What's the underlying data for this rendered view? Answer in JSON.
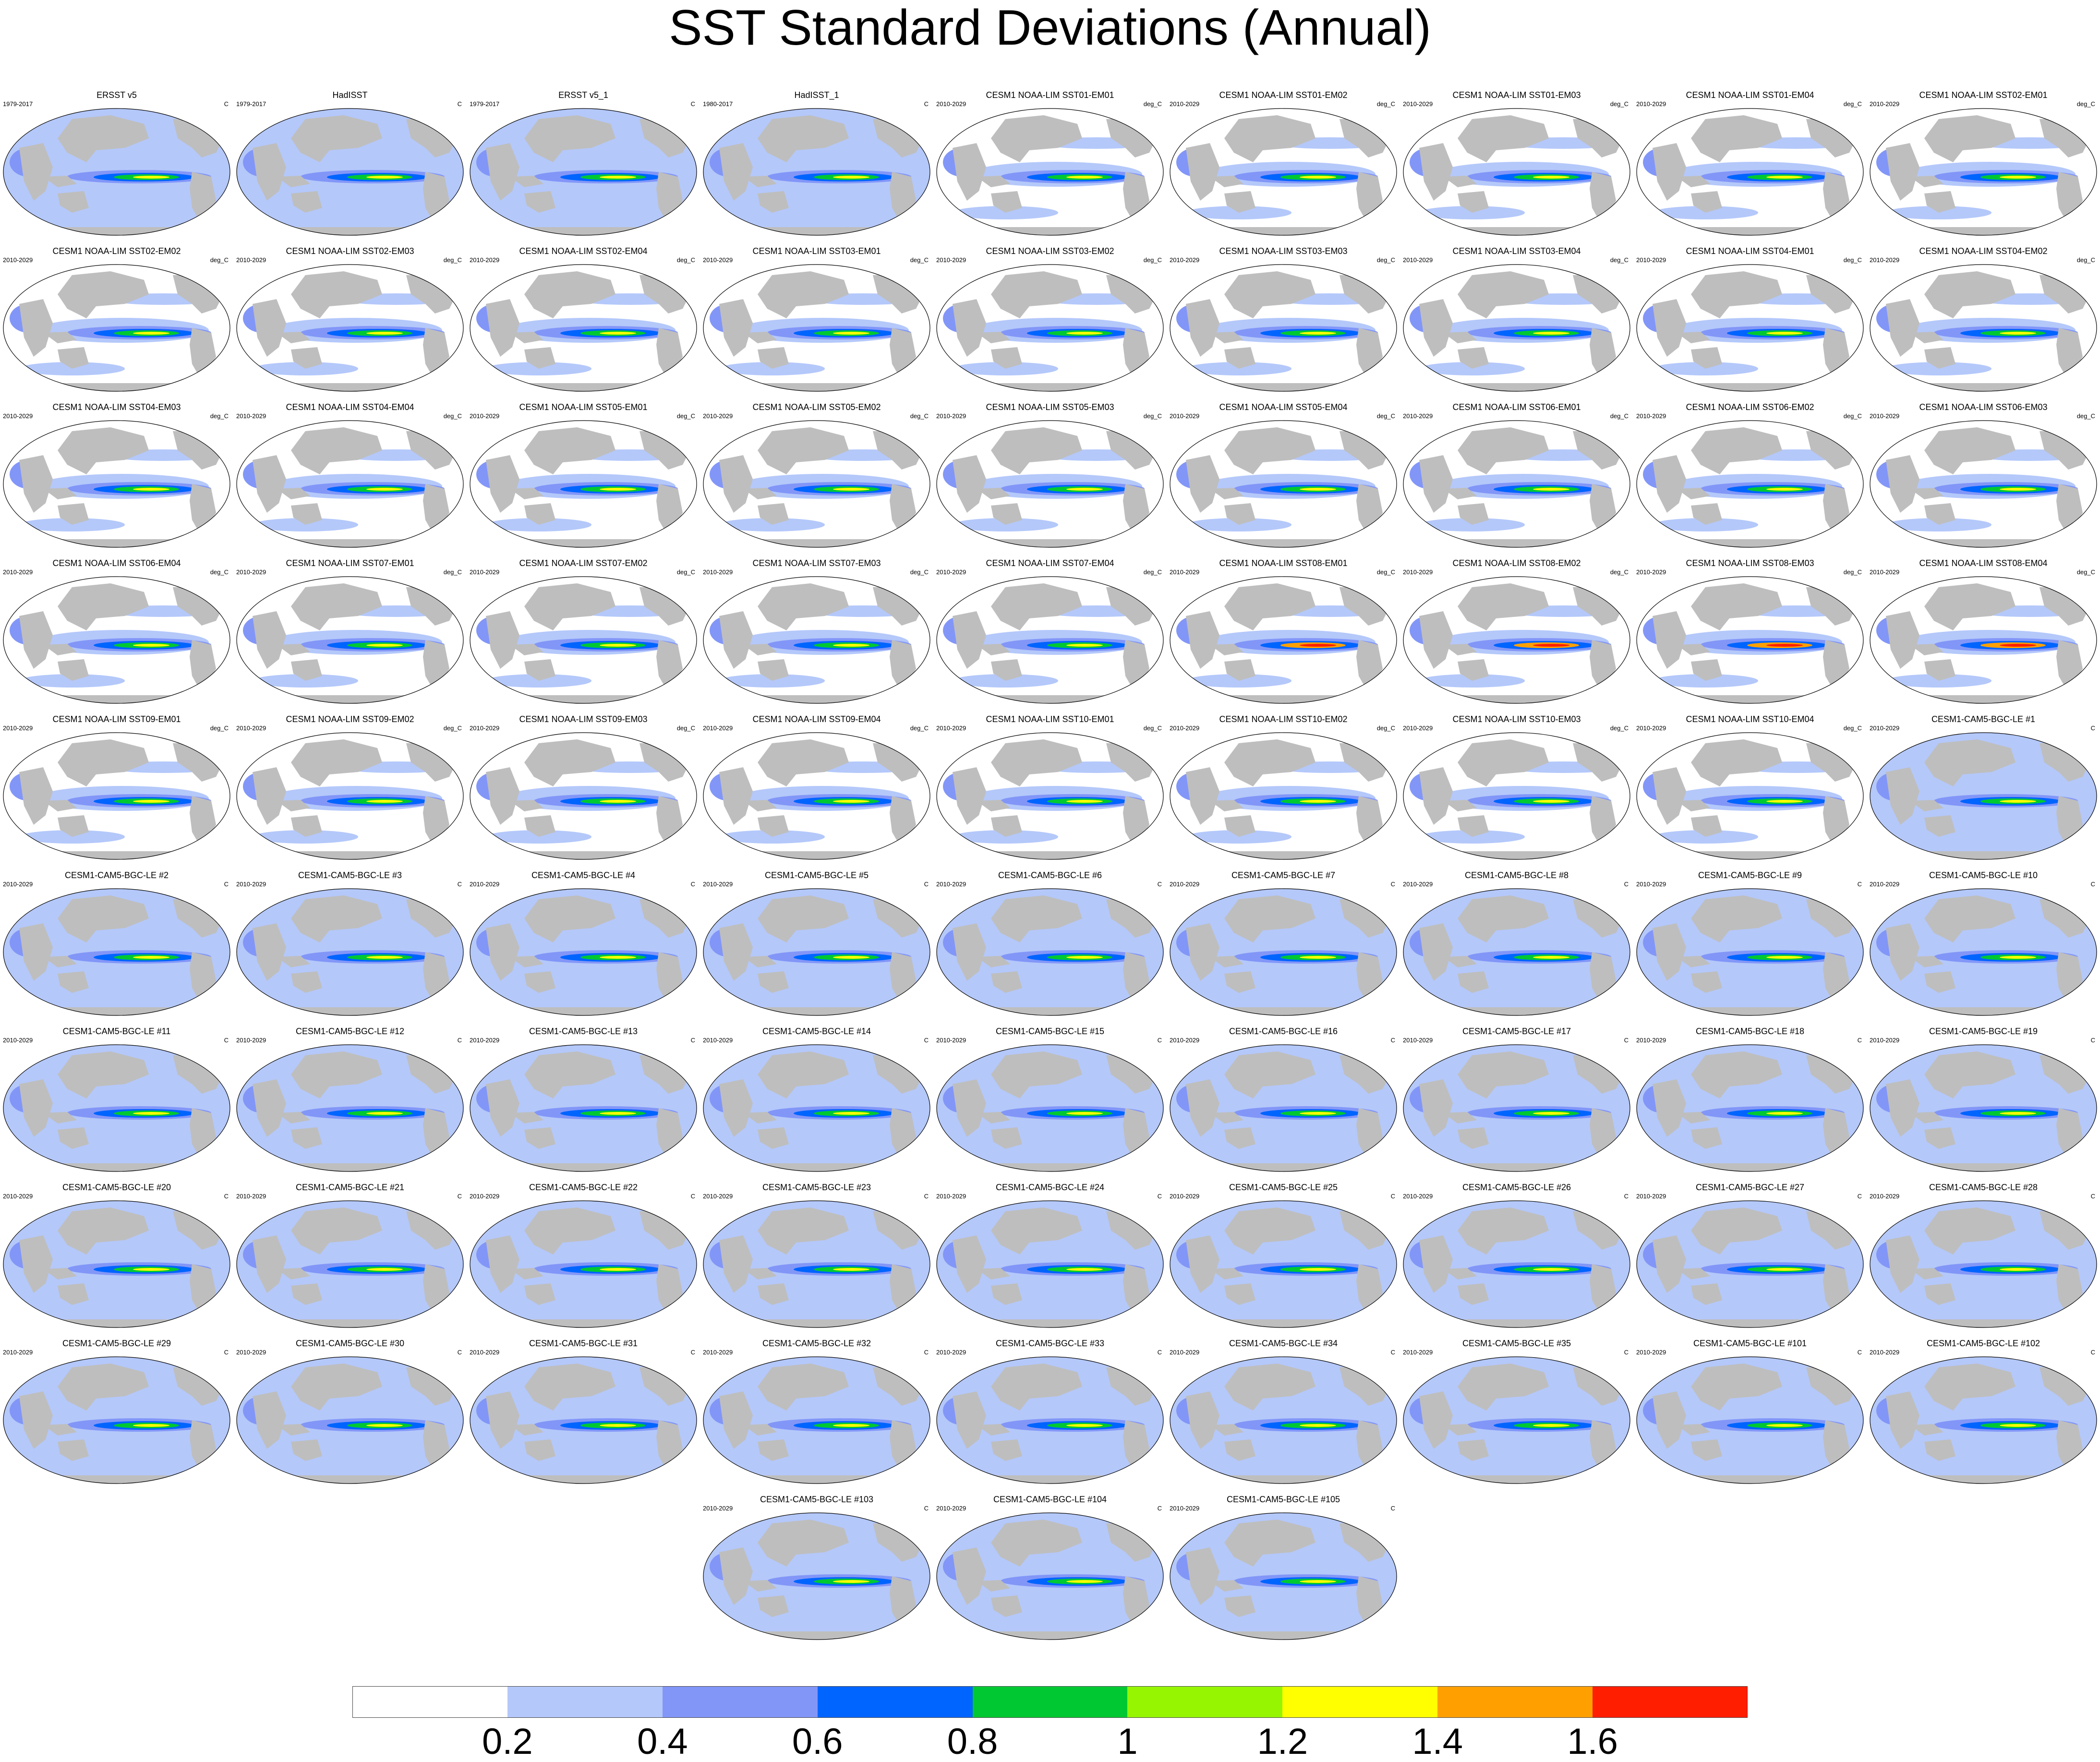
{
  "title": "SST Standard Deviations (Annual)",
  "panels": [
    {
      "title": "ERSST v5",
      "period": "1979-2017",
      "units": "C"
    },
    {
      "title": "HadISST",
      "period": "1979-2017",
      "units": "C"
    },
    {
      "title": "ERSST v5_1",
      "period": "1979-2017",
      "units": "C"
    },
    {
      "title": "HadISST_1",
      "period": "1980-2017",
      "units": "C"
    },
    {
      "title": "CESM1 NOAA-LIM SST01-EM01",
      "period": "2010-2029",
      "units": "deg_C"
    },
    {
      "title": "CESM1 NOAA-LIM SST01-EM02",
      "period": "2010-2029",
      "units": "deg_C"
    },
    {
      "title": "CESM1 NOAA-LIM SST01-EM03",
      "period": "2010-2029",
      "units": "deg_C"
    },
    {
      "title": "CESM1 NOAA-LIM SST01-EM04",
      "period": "2010-2029",
      "units": "deg_C"
    },
    {
      "title": "CESM1 NOAA-LIM SST02-EM01",
      "period": "2010-2029",
      "units": "deg_C"
    },
    {
      "title": "CESM1 NOAA-LIM SST02-EM02",
      "period": "2010-2029",
      "units": "deg_C"
    },
    {
      "title": "CESM1 NOAA-LIM SST02-EM03",
      "period": "2010-2029",
      "units": "deg_C"
    },
    {
      "title": "CESM1 NOAA-LIM SST02-EM04",
      "period": "2010-2029",
      "units": "deg_C"
    },
    {
      "title": "CESM1 NOAA-LIM SST03-EM01",
      "period": "2010-2029",
      "units": "deg_C"
    },
    {
      "title": "CESM1 NOAA-LIM SST03-EM02",
      "period": "2010-2029",
      "units": "deg_C"
    },
    {
      "title": "CESM1 NOAA-LIM SST03-EM03",
      "period": "2010-2029",
      "units": "deg_C"
    },
    {
      "title": "CESM1 NOAA-LIM SST03-EM04",
      "period": "2010-2029",
      "units": "deg_C"
    },
    {
      "title": "CESM1 NOAA-LIM SST04-EM01",
      "period": "2010-2029",
      "units": "deg_C"
    },
    {
      "title": "CESM1 NOAA-LIM SST04-EM02",
      "period": "2010-2029",
      "units": "deg_C"
    },
    {
      "title": "CESM1 NOAA-LIM SST04-EM03",
      "period": "2010-2029",
      "units": "deg_C"
    },
    {
      "title": "CESM1 NOAA-LIM SST04-EM04",
      "period": "2010-2029",
      "units": "deg_C"
    },
    {
      "title": "CESM1 NOAA-LIM SST05-EM01",
      "period": "2010-2029",
      "units": "deg_C"
    },
    {
      "title": "CESM1 NOAA-LIM SST05-EM02",
      "period": "2010-2029",
      "units": "deg_C"
    },
    {
      "title": "CESM1 NOAA-LIM SST05-EM03",
      "period": "2010-2029",
      "units": "deg_C"
    },
    {
      "title": "CESM1 NOAA-LIM SST05-EM04",
      "period": "2010-2029",
      "units": "deg_C"
    },
    {
      "title": "CESM1 NOAA-LIM SST06-EM01",
      "period": "2010-2029",
      "units": "deg_C"
    },
    {
      "title": "CESM1 NOAA-LIM SST06-EM02",
      "period": "2010-2029",
      "units": "deg_C"
    },
    {
      "title": "CESM1 NOAA-LIM SST06-EM03",
      "period": "2010-2029",
      "units": "deg_C"
    },
    {
      "title": "CESM1 NOAA-LIM SST06-EM04",
      "period": "2010-2029",
      "units": "deg_C"
    },
    {
      "title": "CESM1 NOAA-LIM SST07-EM01",
      "period": "2010-2029",
      "units": "deg_C"
    },
    {
      "title": "CESM1 NOAA-LIM SST07-EM02",
      "period": "2010-2029",
      "units": "deg_C"
    },
    {
      "title": "CESM1 NOAA-LIM SST07-EM03",
      "period": "2010-2029",
      "units": "deg_C"
    },
    {
      "title": "CESM1 NOAA-LIM SST07-EM04",
      "period": "2010-2029",
      "units": "deg_C"
    },
    {
      "title": "CESM1 NOAA-LIM SST08-EM01",
      "period": "2010-2029",
      "units": "deg_C"
    },
    {
      "title": "CESM1 NOAA-LIM SST08-EM02",
      "period": "2010-2029",
      "units": "deg_C"
    },
    {
      "title": "CESM1 NOAA-LIM SST08-EM03",
      "period": "2010-2029",
      "units": "deg_C"
    },
    {
      "title": "CESM1 NOAA-LIM SST08-EM04",
      "period": "2010-2029",
      "units": "deg_C"
    },
    {
      "title": "CESM1 NOAA-LIM SST09-EM01",
      "period": "2010-2029",
      "units": "deg_C"
    },
    {
      "title": "CESM1 NOAA-LIM SST09-EM02",
      "period": "2010-2029",
      "units": "deg_C"
    },
    {
      "title": "CESM1 NOAA-LIM SST09-EM03",
      "period": "2010-2029",
      "units": "deg_C"
    },
    {
      "title": "CESM1 NOAA-LIM SST09-EM04",
      "period": "2010-2029",
      "units": "deg_C"
    },
    {
      "title": "CESM1 NOAA-LIM SST10-EM01",
      "period": "2010-2029",
      "units": "deg_C"
    },
    {
      "title": "CESM1 NOAA-LIM SST10-EM02",
      "period": "2010-2029",
      "units": "deg_C"
    },
    {
      "title": "CESM1 NOAA-LIM SST10-EM03",
      "period": "2010-2029",
      "units": "deg_C"
    },
    {
      "title": "CESM1 NOAA-LIM SST10-EM04",
      "period": "2010-2029",
      "units": "deg_C"
    },
    {
      "title": "CESM1-CAM5-BGC-LE #1",
      "period": "2010-2029",
      "units": "C"
    },
    {
      "title": "CESM1-CAM5-BGC-LE #2",
      "period": "2010-2029",
      "units": "C"
    },
    {
      "title": "CESM1-CAM5-BGC-LE #3",
      "period": "2010-2029",
      "units": "C"
    },
    {
      "title": "CESM1-CAM5-BGC-LE #4",
      "period": "2010-2029",
      "units": "C"
    },
    {
      "title": "CESM1-CAM5-BGC-LE #5",
      "period": "2010-2029",
      "units": "C"
    },
    {
      "title": "CESM1-CAM5-BGC-LE #6",
      "period": "2010-2029",
      "units": "C"
    },
    {
      "title": "CESM1-CAM5-BGC-LE #7",
      "period": "2010-2029",
      "units": "C"
    },
    {
      "title": "CESM1-CAM5-BGC-LE #8",
      "period": "2010-2029",
      "units": "C"
    },
    {
      "title": "CESM1-CAM5-BGC-LE #9",
      "period": "2010-2029",
      "units": "C"
    },
    {
      "title": "CESM1-CAM5-BGC-LE #10",
      "period": "2010-2029",
      "units": "C"
    },
    {
      "title": "CESM1-CAM5-BGC-LE #11",
      "period": "2010-2029",
      "units": "C"
    },
    {
      "title": "CESM1-CAM5-BGC-LE #12",
      "period": "2010-2029",
      "units": "C"
    },
    {
      "title": "CESM1-CAM5-BGC-LE #13",
      "period": "2010-2029",
      "units": "C"
    },
    {
      "title": "CESM1-CAM5-BGC-LE #14",
      "period": "2010-2029",
      "units": "C"
    },
    {
      "title": "CESM1-CAM5-BGC-LE #15",
      "period": "2010-2029",
      "units": "C"
    },
    {
      "title": "CESM1-CAM5-BGC-LE #16",
      "period": "2010-2029",
      "units": "C"
    },
    {
      "title": "CESM1-CAM5-BGC-LE #17",
      "period": "2010-2029",
      "units": "C"
    },
    {
      "title": "CESM1-CAM5-BGC-LE #18",
      "period": "2010-2029",
      "units": "C"
    },
    {
      "title": "CESM1-CAM5-BGC-LE #19",
      "period": "2010-2029",
      "units": "C"
    },
    {
      "title": "CESM1-CAM5-BGC-LE #20",
      "period": "2010-2029",
      "units": "C"
    },
    {
      "title": "CESM1-CAM5-BGC-LE #21",
      "period": "2010-2029",
      "units": "C"
    },
    {
      "title": "CESM1-CAM5-BGC-LE #22",
      "period": "2010-2029",
      "units": "C"
    },
    {
      "title": "CESM1-CAM5-BGC-LE #23",
      "period": "2010-2029",
      "units": "C"
    },
    {
      "title": "CESM1-CAM5-BGC-LE #24",
      "period": "2010-2029",
      "units": "C"
    },
    {
      "title": "CESM1-CAM5-BGC-LE #25",
      "period": "2010-2029",
      "units": "C"
    },
    {
      "title": "CESM1-CAM5-BGC-LE #26",
      "period": "2010-2029",
      "units": "C"
    },
    {
      "title": "CESM1-CAM5-BGC-LE #27",
      "period": "2010-2029",
      "units": "C"
    },
    {
      "title": "CESM1-CAM5-BGC-LE #28",
      "period": "2010-2029",
      "units": "C"
    },
    {
      "title": "CESM1-CAM5-BGC-LE #29",
      "period": "2010-2029",
      "units": "C"
    },
    {
      "title": "CESM1-CAM5-BGC-LE #30",
      "period": "2010-2029",
      "units": "C"
    },
    {
      "title": "CESM1-CAM5-BGC-LE #31",
      "period": "2010-2029",
      "units": "C"
    },
    {
      "title": "CESM1-CAM5-BGC-LE #32",
      "period": "2010-2029",
      "units": "C"
    },
    {
      "title": "CESM1-CAM5-BGC-LE #33",
      "period": "2010-2029",
      "units": "C"
    },
    {
      "title": "CESM1-CAM5-BGC-LE #34",
      "period": "2010-2029",
      "units": "C"
    },
    {
      "title": "CESM1-CAM5-BGC-LE #35",
      "period": "2010-2029",
      "units": "C"
    },
    {
      "title": "CESM1-CAM5-BGC-LE #101",
      "period": "2010-2029",
      "units": "C"
    },
    {
      "title": "CESM1-CAM5-BGC-LE #102",
      "period": "2010-2029",
      "units": "C"
    },
    {
      "title": "CESM1-CAM5-BGC-LE #103",
      "period": "2010-2029",
      "units": "C"
    },
    {
      "title": "CESM1-CAM5-BGC-LE #104",
      "period": "2010-2029",
      "units": "C"
    },
    {
      "title": "CESM1-CAM5-BGC-LE #105",
      "period": "2010-2029",
      "units": "C"
    }
  ],
  "colorbar": {
    "labels": [
      "0.2",
      "0.4",
      "0.6",
      "0.8",
      "1",
      "1.2",
      "1.4",
      "1.6"
    ],
    "colors": [
      "#ffffff",
      "#b4c8fa",
      "#8296f8",
      "#0064ff",
      "#00c832",
      "#96f500",
      "#ffff00",
      "#ffa000",
      "#ff1e00"
    ]
  },
  "map_colors": {
    "land": "#bebebe",
    "ocean_low": "#b4c8fa",
    "ocean_mid": "#8296f8",
    "ocean_high": "#0064ff",
    "band_green": "#00c832",
    "band_yellow": "#ffff00",
    "band_orange": "#ffa000",
    "band_red": "#ff1e00"
  }
}
